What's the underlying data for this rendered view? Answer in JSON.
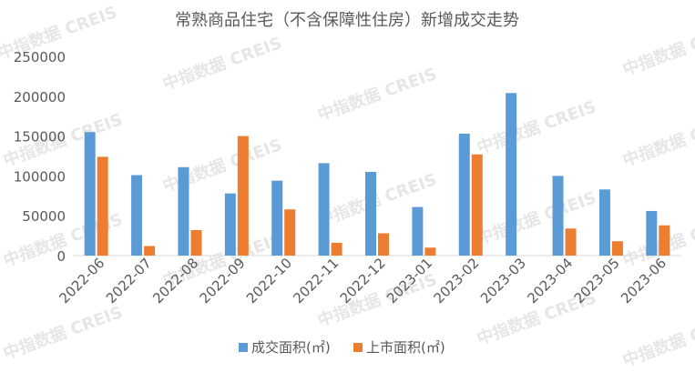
{
  "chart_data": {
    "type": "bar",
    "title": "常熟商品住宅（不含保障性住房）新增成交走势",
    "categories": [
      "2022-06",
      "2022-07",
      "2022-08",
      "2022-09",
      "2022-10",
      "2022-11",
      "2022-12",
      "2023-01",
      "2023-02",
      "2023-03",
      "2023-04",
      "2023-05",
      "2023-06"
    ],
    "series": [
      {
        "name": "成交面积(㎡)",
        "color": "#5B9BD5",
        "values": [
          155000,
          101000,
          111000,
          78000,
          94000,
          116000,
          105000,
          61000,
          153000,
          204000,
          100000,
          83000,
          56000
        ]
      },
      {
        "name": "上市面积(㎡)",
        "color": "#ED7D31",
        "values": [
          124000,
          12000,
          32000,
          150000,
          58000,
          16000,
          28000,
          10000,
          127000,
          0,
          34000,
          18000,
          38000
        ]
      }
    ],
    "ylim": [
      0,
      250000
    ],
    "yticks": [
      0,
      50000,
      100000,
      150000,
      200000,
      250000
    ],
    "grid": false,
    "legend": "bottom"
  },
  "watermark": "中指数据 CREIS"
}
